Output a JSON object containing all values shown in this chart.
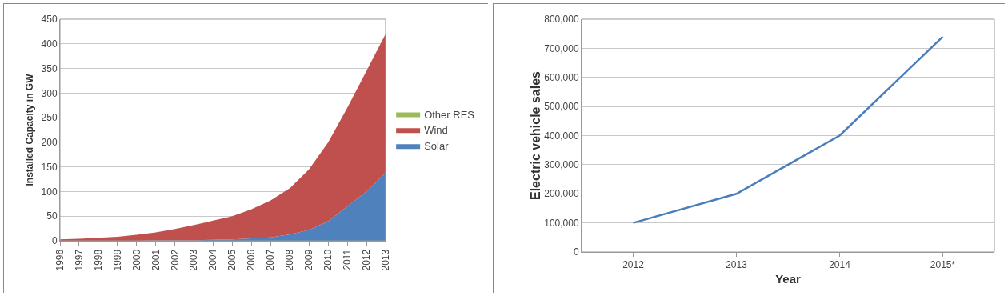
{
  "chart_data": [
    {
      "type": "area",
      "stacked": true,
      "ylabel": "Installed Capacity in GW",
      "categories": [
        "1996",
        "1997",
        "1998",
        "1999",
        "2000",
        "2001",
        "2002",
        "2003",
        "2004",
        "2005",
        "2006",
        "2007",
        "2008",
        "2009",
        "2010",
        "2011",
        "2012",
        "2013"
      ],
      "series": [
        {
          "name": "Solar",
          "color": "#4f81bd",
          "values": [
            0,
            0,
            0,
            0,
            0,
            1,
            1,
            1,
            2,
            3,
            5,
            7,
            13,
            22,
            40,
            70,
            100,
            138
          ]
        },
        {
          "name": "Wind",
          "color": "#c0504d",
          "values": [
            3,
            4,
            6,
            8,
            12,
            16,
            23,
            31,
            39,
            47,
            59,
            75,
            94,
            123,
            160,
            200,
            245,
            282
          ]
        },
        {
          "name": "Other RES",
          "color": "#9bbb59",
          "values": [
            null,
            null,
            null,
            null,
            null,
            null,
            null,
            null,
            null,
            null,
            null,
            null,
            null,
            null,
            null,
            null,
            null,
            null
          ]
        }
      ],
      "ylim": [
        0,
        450
      ],
      "yticks": [
        0,
        50,
        100,
        150,
        200,
        250,
        300,
        350,
        400,
        450
      ],
      "grid": "y",
      "legend": "right"
    },
    {
      "type": "line",
      "xlabel": "Year",
      "ylabel": "Electric vehicle sales",
      "categories": [
        "2012",
        "2013",
        "2014",
        "2015*"
      ],
      "series": [
        {
          "color": "#4a7ebb",
          "values": [
            100000,
            200000,
            400000,
            740000
          ]
        }
      ],
      "ylim": [
        0,
        800000
      ],
      "yticks": [
        0,
        {
          "value": 100000,
          "label": "100,000"
        },
        {
          "value": 200000,
          "label": "200,000"
        },
        {
          "value": 300000,
          "label": "300,000"
        },
        {
          "value": 400000,
          "label": "400,000"
        },
        {
          "value": 500000,
          "label": "500,000"
        },
        {
          "value": 600000,
          "label": "600,000"
        },
        {
          "value": 700000,
          "label": "700,000"
        },
        {
          "value": 800000,
          "label": "800,000"
        }
      ],
      "grid": "y",
      "legend": false,
      "marker": "none",
      "line_style": "solid"
    }
  ]
}
